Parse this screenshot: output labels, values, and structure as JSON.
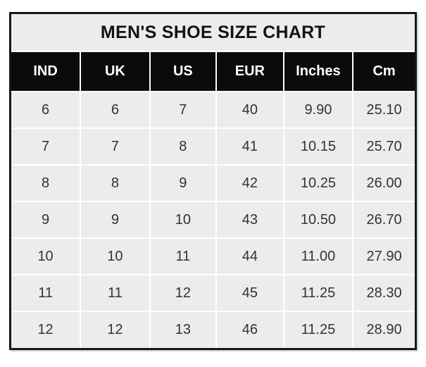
{
  "chart_data": {
    "type": "table",
    "title": "MEN'S SHOE SIZE CHART",
    "columns": [
      "IND",
      "UK",
      "US",
      "EUR",
      "Inches",
      "Cm"
    ],
    "rows": [
      [
        "6",
        "6",
        "7",
        "40",
        "9.90",
        "25.10"
      ],
      [
        "7",
        "7",
        "8",
        "41",
        "10.15",
        "25.70"
      ],
      [
        "8",
        "8",
        "9",
        "42",
        "10.25",
        "26.00"
      ],
      [
        "9",
        "9",
        "10",
        "43",
        "10.50",
        "26.70"
      ],
      [
        "10",
        "10",
        "11",
        "44",
        "11.00",
        "27.90"
      ],
      [
        "11",
        "11",
        "12",
        "45",
        "11.25",
        "28.30"
      ],
      [
        "12",
        "12",
        "13",
        "46",
        "11.25",
        "28.90"
      ]
    ],
    "layout": {
      "legend": "none",
      "grid": "white gridlines between cells"
    },
    "colors": {
      "header_bg": "#0c0a0a",
      "header_text": "#ffffff",
      "cell_bg": "#edeceb",
      "cell_text": "#343232",
      "gridline": "#ffffff",
      "outer_border": "#1a1717",
      "page_bg": "#ffffff"
    }
  }
}
